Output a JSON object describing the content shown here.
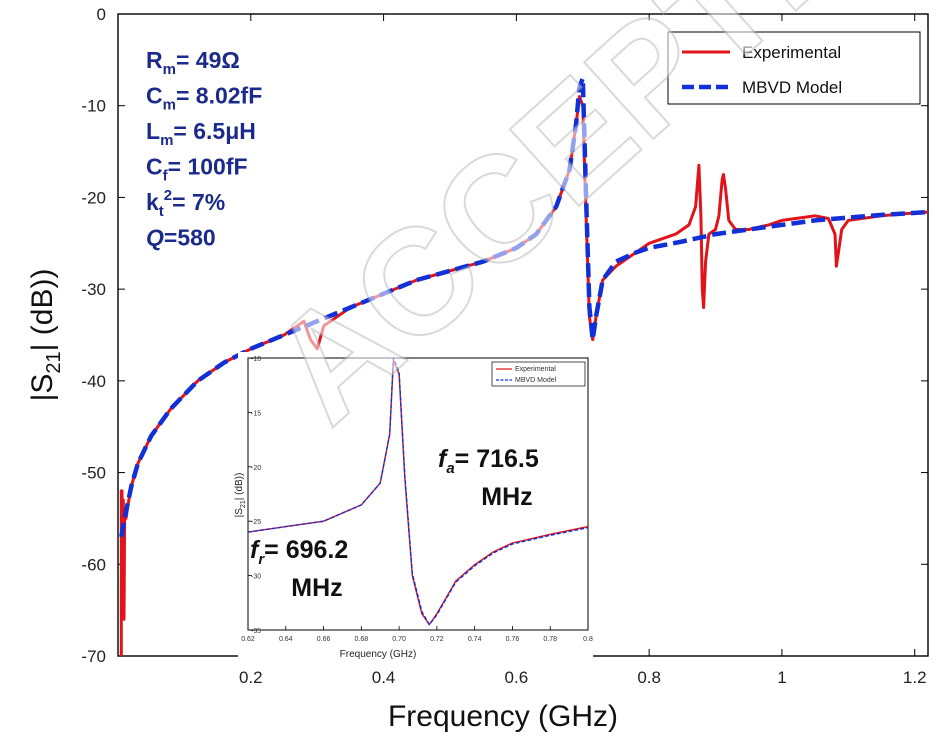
{
  "watermark": "ACCEPTED",
  "colors": {
    "experimental": "#e0141a",
    "model": "#1230d8",
    "param_text": "#1c2a8c"
  },
  "params": [
    {
      "main": "R",
      "sub": "m",
      "sup": "",
      "value": "= 49Ω",
      "italic": false
    },
    {
      "main": "C",
      "sub": "m",
      "sup": "",
      "value": "= 8.02fF",
      "italic": false
    },
    {
      "main": "L",
      "sub": "m",
      "sup": "",
      "value": "= 6.5μH",
      "italic": false
    },
    {
      "main": "C",
      "sub": "f",
      "sup": "",
      "value": "= 100fF",
      "italic": false
    },
    {
      "main": "k",
      "sub": "t",
      "sup": "2",
      "value": "= 7%",
      "italic": false
    },
    {
      "main": "Q",
      "sub": "",
      "sup": "",
      "value": "=580",
      "italic": true
    }
  ],
  "chart_data": [
    {
      "type": "line",
      "xlabel": "Frequency (GHz)",
      "ylabel": "|S21| (dB))",
      "ylabel_parts": {
        "pre": "|S",
        "sub": "21",
        "post": "| (dB))"
      },
      "xlim": [
        0,
        1.22
      ],
      "ylim": [
        -70,
        0
      ],
      "xticks": [
        0.2,
        0.4,
        0.6,
        0.8,
        1,
        1.2
      ],
      "xtick_labels": [
        "0.2",
        "0.4",
        "0.6",
        "0.8",
        "1",
        "1.2"
      ],
      "yticks": [
        0,
        -10,
        -20,
        -30,
        -40,
        -50,
        -60,
        -70
      ],
      "ytick_labels": [
        "0",
        "-10",
        "-20",
        "-30",
        "-40",
        "-50",
        "-60",
        "-70"
      ],
      "legend": {
        "position": "top-right",
        "entries": [
          "Experimental",
          "MBVD Model"
        ]
      },
      "series": [
        {
          "name": "Experimental",
          "style": "solid",
          "x": [
            0.005,
            0.005,
            0.006,
            0.006,
            0.007,
            0.008,
            0.009,
            0.01,
            0.011,
            0.012,
            0.015,
            0.02,
            0.03,
            0.05,
            0.08,
            0.12,
            0.16,
            0.2,
            0.25,
            0.27,
            0.28,
            0.29,
            0.3,
            0.31,
            0.35,
            0.4,
            0.45,
            0.5,
            0.55,
            0.6,
            0.63,
            0.66,
            0.68,
            0.69,
            0.695,
            0.7,
            0.705,
            0.71,
            0.715,
            0.72,
            0.73,
            0.75,
            0.78,
            0.8,
            0.82,
            0.84,
            0.86,
            0.87,
            0.875,
            0.878,
            0.88,
            0.882,
            0.885,
            0.89,
            0.9,
            0.905,
            0.91,
            0.912,
            0.915,
            0.92,
            0.93,
            0.95,
            0.98,
            1.0,
            1.03,
            1.05,
            1.07,
            1.08,
            1.082,
            1.085,
            1.09,
            1.1,
            1.12,
            1.15,
            1.18,
            1.22
          ],
          "y": [
            -70,
            -52,
            -66,
            -52,
            -65,
            -53,
            -66,
            -55,
            -54,
            -55,
            -53.5,
            -51.5,
            -49,
            -46,
            -43,
            -40,
            -38,
            -36.5,
            -35,
            -34,
            -33.5,
            -35.5,
            -36.5,
            -34,
            -32,
            -30.5,
            -29,
            -28,
            -27,
            -25.5,
            -24,
            -21,
            -17,
            -12,
            -9,
            -10,
            -22,
            -33,
            -35.5,
            -33,
            -29,
            -27.5,
            -26,
            -25,
            -24.5,
            -24,
            -23,
            -21,
            -16.5,
            -22,
            -30,
            -32,
            -27,
            -24,
            -23.5,
            -22,
            -18,
            -17.5,
            -19,
            -22.5,
            -23.5,
            -23.5,
            -23,
            -22.5,
            -22.2,
            -22,
            -22.3,
            -24,
            -27.5,
            -26,
            -23.5,
            -22.5,
            -22.3,
            -22,
            -21.8,
            -21.6
          ]
        },
        {
          "name": "MBVD Model",
          "style": "dashed",
          "x": [
            0.005,
            0.01,
            0.02,
            0.03,
            0.05,
            0.08,
            0.12,
            0.16,
            0.2,
            0.25,
            0.3,
            0.35,
            0.4,
            0.45,
            0.5,
            0.55,
            0.6,
            0.63,
            0.66,
            0.68,
            0.69,
            0.695,
            0.7,
            0.705,
            0.71,
            0.715,
            0.72,
            0.73,
            0.75,
            0.78,
            0.8,
            0.85,
            0.9,
            0.95,
            1.0,
            1.05,
            1.1,
            1.15,
            1.22
          ],
          "y": [
            -57,
            -55,
            -51.5,
            -49,
            -46,
            -43,
            -40,
            -38,
            -36.5,
            -35,
            -33.5,
            -32,
            -30.5,
            -29,
            -28,
            -27,
            -25.5,
            -24,
            -21,
            -17,
            -12,
            -8,
            -7,
            -20,
            -32,
            -35.5,
            -33,
            -29,
            -27,
            -26,
            -25.5,
            -24.8,
            -24,
            -23.5,
            -23,
            -22.5,
            -22.2,
            -21.9,
            -21.6
          ]
        }
      ]
    },
    {
      "type": "line",
      "xlabel": "Frequency (GHz)",
      "ylabel": "|S21| (dB))",
      "ylabel_parts": {
        "pre": "|S",
        "sub": "21",
        "post": "| (dB))"
      },
      "xlim": [
        0.62,
        0.8
      ],
      "ylim": [
        -35,
        -10
      ],
      "xticks": [
        0.62,
        0.64,
        0.66,
        0.68,
        0.7,
        0.72,
        0.74,
        0.76,
        0.78,
        0.8
      ],
      "xtick_labels": [
        "0.62",
        "0.64",
        "0.66",
        "0.68",
        "0.70",
        "0.72",
        "0.74",
        "0.76",
        "0.78",
        "0.8"
      ],
      "yticks": [
        -10,
        -15,
        -20,
        -25,
        -30,
        -35
      ],
      "ytick_labels": [
        "-10",
        "-15",
        "-20",
        "-25",
        "-30",
        "-35"
      ],
      "legend": {
        "position": "top-right",
        "entries": [
          "Experimental",
          "MBVD Model"
        ]
      },
      "annotations": [
        {
          "symbol": "f",
          "sub": "a",
          "value": "= 716.5",
          "unit": "MHz"
        },
        {
          "symbol": "f",
          "sub": "r",
          "value": "= 696.2",
          "unit": "MHz"
        }
      ],
      "series": [
        {
          "name": "Experimental",
          "style": "solid",
          "x": [
            0.62,
            0.64,
            0.66,
            0.68,
            0.69,
            0.695,
            0.697,
            0.7,
            0.703,
            0.707,
            0.712,
            0.716,
            0.72,
            0.73,
            0.74,
            0.75,
            0.76,
            0.78,
            0.8
          ],
          "y": [
            -26,
            -25.5,
            -25,
            -23.5,
            -21.5,
            -17,
            -10.2,
            -11.5,
            -21,
            -30,
            -33.5,
            -34.5,
            -33.5,
            -30.5,
            -29,
            -27.8,
            -27,
            -26.2,
            -25.5
          ],
          "y_label_hint": ""
        },
        {
          "name": "MBVD Model",
          "style": "dashed",
          "x": [
            0.62,
            0.64,
            0.66,
            0.68,
            0.69,
            0.695,
            0.697,
            0.7,
            0.703,
            0.707,
            0.712,
            0.716,
            0.72,
            0.73,
            0.74,
            0.75,
            0.76,
            0.78,
            0.8
          ],
          "y": [
            -26,
            -25.5,
            -25,
            -23.5,
            -21.5,
            -17,
            -10,
            -11.3,
            -20.8,
            -29.8,
            -33.3,
            -34.5,
            -33.6,
            -30.6,
            -29.1,
            -27.9,
            -27.1,
            -26.3,
            -25.6
          ]
        }
      ]
    }
  ]
}
